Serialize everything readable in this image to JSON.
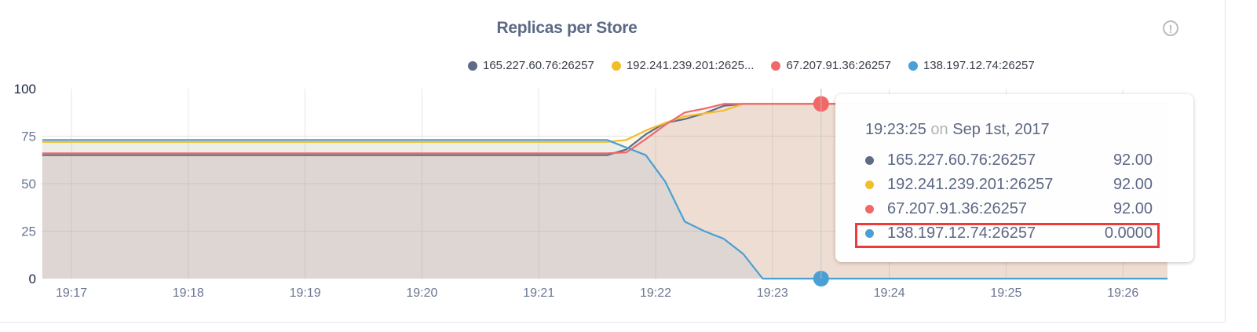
{
  "chart_data": {
    "type": "area",
    "title": "Replicas per Store",
    "xlabel": "",
    "ylabel": "",
    "ylim": [
      0,
      100
    ],
    "yticks": [
      "0",
      "25",
      "50",
      "75",
      "100"
    ],
    "xticks": [
      "19:17",
      "19:18",
      "19:19",
      "19:20",
      "19:21",
      "19:22",
      "19:23",
      "19:24",
      "19:25",
      "19:26"
    ],
    "grid": true,
    "legend": "top-right",
    "series": [
      {
        "name": "165.227.60.76:26257",
        "legend_label": "165.227.60.76:26257",
        "color": "#5f6a86",
        "x": [
          "19:16:45",
          "19:21:35",
          "19:21:45",
          "19:21:55",
          "19:22:05",
          "19:22:15",
          "19:22:25",
          "19:22:35",
          "19:22:45",
          "19:26:25"
        ],
        "y": [
          65,
          65,
          68,
          76,
          82,
          84,
          87,
          91,
          92,
          92
        ]
      },
      {
        "name": "192.241.239.201:26257",
        "legend_label": "192.241.239.201:2625...",
        "color": "#f2bd2b",
        "x": [
          "19:16:45",
          "19:21:35",
          "19:21:45",
          "19:21:55",
          "19:22:05",
          "19:22:15",
          "19:22:25",
          "19:22:35",
          "19:22:45",
          "19:26:25"
        ],
        "y": [
          72,
          72,
          73,
          78,
          82,
          85.5,
          87,
          88.5,
          92,
          92
        ]
      },
      {
        "name": "67.207.91.36:26257",
        "legend_label": "67.207.91.36:26257",
        "color": "#f06868",
        "x": [
          "19:16:45",
          "19:21:35",
          "19:21:45",
          "19:21:55",
          "19:22:05",
          "19:22:15",
          "19:22:25",
          "19:22:35",
          "19:22:45",
          "19:26:25"
        ],
        "y": [
          66,
          66,
          66.5,
          73.5,
          81,
          87.5,
          89.5,
          92,
          92,
          92
        ]
      },
      {
        "name": "138.197.12.74:26257",
        "legend_label": "138.197.12.74:26257",
        "color": "#4a9fd4",
        "x": [
          "19:16:45",
          "19:21:35",
          "19:21:55",
          "19:22:05",
          "19:22:15",
          "19:22:25",
          "19:22:35",
          "19:22:45",
          "19:22:55",
          "19:26:25"
        ],
        "y": [
          73,
          73,
          65,
          51,
          30,
          25,
          21,
          13,
          0,
          0
        ]
      }
    ],
    "crosshair_time": "19:23:25"
  },
  "tooltip": {
    "time": "19:23:25",
    "on": "on",
    "date": "Sep 1st, 2017",
    "rows": [
      {
        "name": "165.227.60.76:26257",
        "value": "92.00",
        "color": "#5f6a86"
      },
      {
        "name": "192.241.239.201:26257",
        "value": "92.00",
        "color": "#f2bd2b"
      },
      {
        "name": "67.207.91.36:26257",
        "value": "92.00",
        "color": "#f06868"
      },
      {
        "name": "138.197.12.74:26257",
        "value": "0.0000",
        "color": "#4a9fd4"
      }
    ]
  },
  "info_icon": "exclamation-circle-icon",
  "info_glyph": "!"
}
